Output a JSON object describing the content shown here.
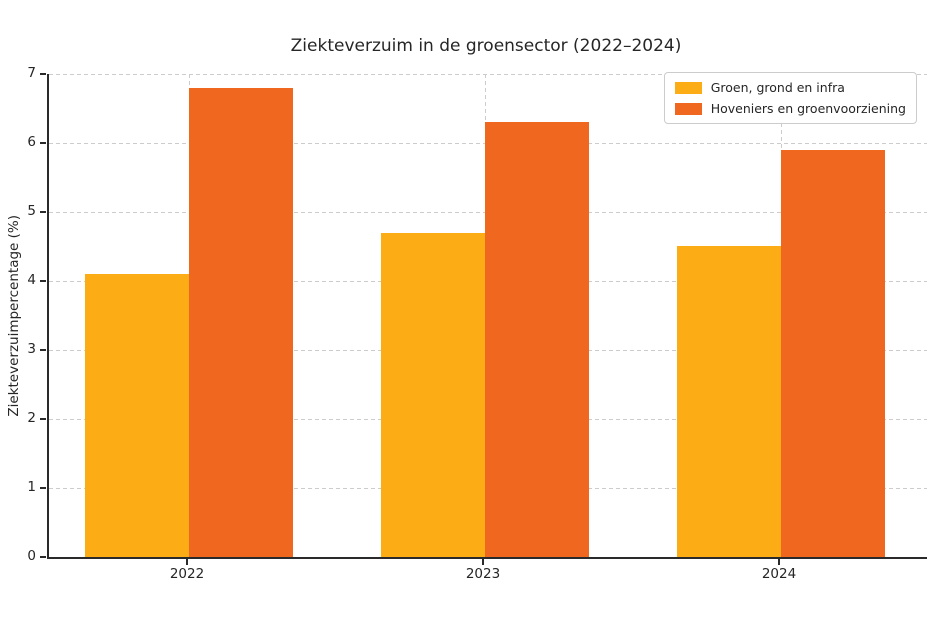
{
  "title": "Ziekteverzuim in de groensector (2022–2024)",
  "chart_data": {
    "type": "bar",
    "categories": [
      "2022",
      "2023",
      "2024"
    ],
    "series": [
      {
        "name": "Groen, grond en infra",
        "color": "#FCAD16",
        "values": [
          4.1,
          4.7,
          4.5
        ]
      },
      {
        "name": "Hoveniers en groenvoorziening",
        "color": "#F0671F",
        "values": [
          6.8,
          6.3,
          5.9
        ]
      }
    ],
    "title": "Ziekteverzuim in de groensector (2022–2024)",
    "xlabel": "",
    "ylabel": "Ziekteverzuimpercentage (%)",
    "ylim": [
      0,
      7
    ],
    "yticks": [
      0,
      1,
      2,
      3,
      4,
      5,
      6,
      7
    ],
    "grid": "dashed-horizontal-and-vertical",
    "grid_color": "#cccccc",
    "legend_position": "upper right",
    "text_color": "#262626",
    "background_color": "#ffffff"
  }
}
